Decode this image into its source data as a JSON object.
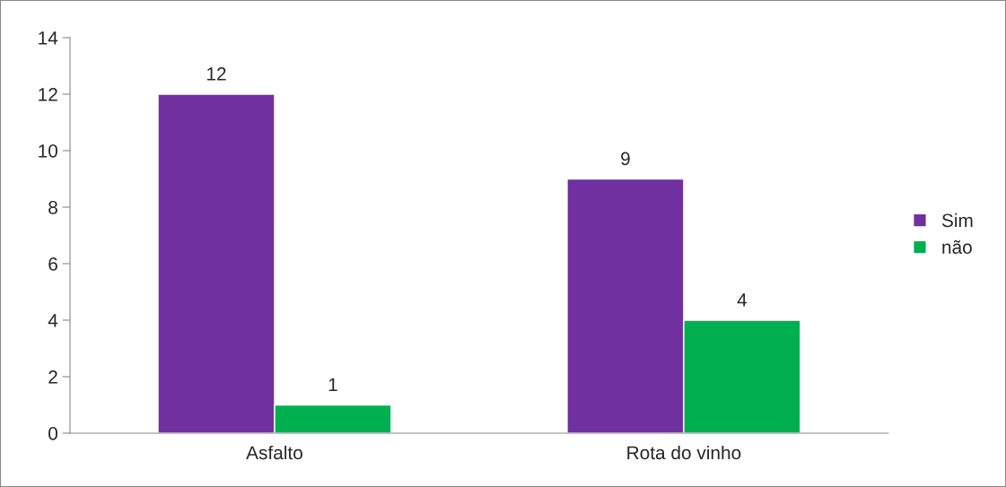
{
  "chart_data": {
    "type": "bar",
    "categories": [
      "Asfalto",
      "Rota do vinho"
    ],
    "series": [
      {
        "name": "Sim",
        "color": "#7030a0",
        "values": [
          12,
          9
        ]
      },
      {
        "name": "não",
        "color": "#00b050",
        "values": [
          1,
          4
        ]
      }
    ],
    "ylim": [
      0,
      14
    ],
    "yticks": [
      0,
      2,
      4,
      6,
      8,
      10,
      12,
      14
    ],
    "data_labels": true,
    "legend": "right",
    "grid": false
  }
}
